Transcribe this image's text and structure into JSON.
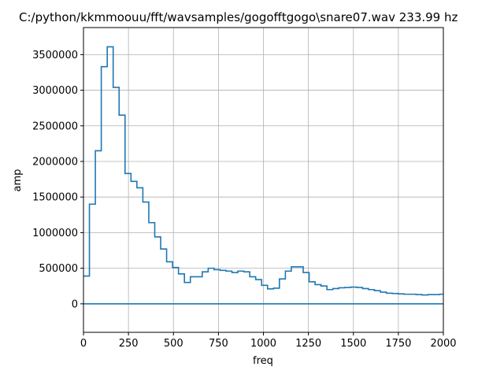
{
  "chart_data": {
    "type": "line",
    "title": "C:/python/kkmmoouu/fft/wavsamples/gogofftgogo\\snare07.wav 233.99 hz",
    "xlabel": "freq",
    "ylabel": "amp",
    "xlim": [
      0,
      2000
    ],
    "ylim": [
      -400000,
      3880000
    ],
    "grid": true,
    "line_color": "#1f77b4",
    "xticks": [
      0,
      250,
      500,
      750,
      1000,
      1250,
      1500,
      1750,
      2000
    ],
    "yticks": [
      0,
      500000,
      1000000,
      1500000,
      2000000,
      2500000,
      3000000,
      3500000
    ],
    "step_width": 33,
    "series": [
      {
        "values": [
          [
            0,
            390000
          ],
          [
            33,
            1400000
          ],
          [
            66,
            2150000
          ],
          [
            99,
            3330000
          ],
          [
            132,
            3610000
          ],
          [
            165,
            3040000
          ],
          [
            198,
            2650000
          ],
          [
            231,
            1830000
          ],
          [
            264,
            1720000
          ],
          [
            297,
            1630000
          ],
          [
            330,
            1430000
          ],
          [
            363,
            1140000
          ],
          [
            396,
            940000
          ],
          [
            429,
            770000
          ],
          [
            462,
            590000
          ],
          [
            495,
            510000
          ],
          [
            528,
            420000
          ],
          [
            561,
            300000
          ],
          [
            594,
            380000
          ],
          [
            627,
            380000
          ],
          [
            660,
            450000
          ],
          [
            693,
            500000
          ],
          [
            726,
            480000
          ],
          [
            759,
            470000
          ],
          [
            792,
            460000
          ],
          [
            825,
            440000
          ],
          [
            858,
            460000
          ],
          [
            891,
            450000
          ],
          [
            924,
            380000
          ],
          [
            957,
            340000
          ],
          [
            990,
            260000
          ],
          [
            1023,
            210000
          ],
          [
            1056,
            220000
          ],
          [
            1089,
            350000
          ],
          [
            1122,
            460000
          ],
          [
            1155,
            520000
          ],
          [
            1188,
            520000
          ],
          [
            1221,
            440000
          ],
          [
            1254,
            310000
          ],
          [
            1287,
            270000
          ],
          [
            1320,
            250000
          ],
          [
            1353,
            200000
          ],
          [
            1386,
            215000
          ],
          [
            1419,
            225000
          ],
          [
            1452,
            230000
          ],
          [
            1485,
            235000
          ],
          [
            1518,
            230000
          ],
          [
            1551,
            215000
          ],
          [
            1584,
            200000
          ],
          [
            1617,
            185000
          ],
          [
            1650,
            165000
          ],
          [
            1683,
            150000
          ],
          [
            1716,
            145000
          ],
          [
            1749,
            140000
          ],
          [
            1782,
            135000
          ],
          [
            1815,
            135000
          ],
          [
            1848,
            130000
          ],
          [
            1881,
            125000
          ],
          [
            1914,
            130000
          ],
          [
            1947,
            130000
          ],
          [
            1980,
            135000
          ]
        ]
      },
      {
        "values": [
          [
            0,
            0
          ],
          [
            2000,
            0
          ]
        ]
      }
    ]
  }
}
